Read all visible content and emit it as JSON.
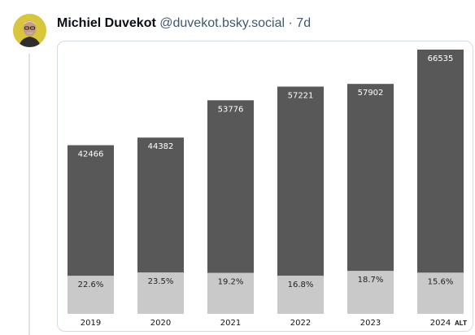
{
  "post": {
    "author_name": "Michiel Duvekot",
    "author_handle": "@duvekot.bsky.social",
    "separator": "·",
    "time": "7d",
    "alt_badge": "ALT"
  },
  "colors": {
    "bar_top": "#585858",
    "bar_bottom": "#c9c9c9"
  },
  "chart_data": {
    "type": "bar",
    "stacked": true,
    "categories": [
      "2019",
      "2020",
      "2021",
      "2022",
      "2023",
      "2024"
    ],
    "series": [
      {
        "values": [
          32869,
          33952,
          43451,
          47608,
          47074,
          56155
        ]
      },
      {
        "values": [
          9597,
          10430,
          10325,
          9613,
          10828,
          10380
        ]
      }
    ],
    "total_labels": [
      "42466",
      "44382",
      "53776",
      "57221",
      "57902",
      "66535"
    ],
    "percent_labels": [
      "22.6%",
      "23.5%",
      "19.2%",
      "16.8%",
      "18.7%",
      "15.6%"
    ],
    "ylim": [
      0,
      66535
    ],
    "grid": false,
    "title": "",
    "xlabel": "",
    "ylabel": ""
  }
}
